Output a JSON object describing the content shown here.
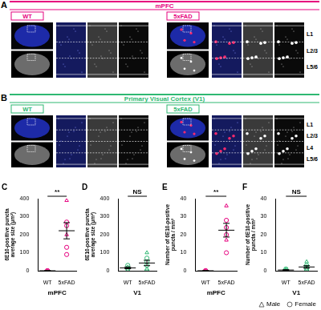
{
  "figure": {
    "panels": [
      {
        "letter": "A",
        "title": "mPFC",
        "color": "#e6007e",
        "groups": [
          "WT",
          "5xFAD"
        ],
        "layers": [
          "L1",
          "L2/3",
          "L5/6"
        ]
      },
      {
        "letter": "B",
        "title": "Primary Visual Cortex (V1)",
        "color": "#2eb872",
        "groups": [
          "WT",
          "5xFAD"
        ],
        "layers": [
          "L1",
          "L2/3",
          "L4",
          "L5/6"
        ]
      }
    ]
  },
  "chart_data": [
    {
      "letter": "C",
      "type": "scatter",
      "x_label": "mPFC",
      "y_label": "6E10-positive puncta average size (µm²)",
      "categories": [
        "WT",
        "5xFAD"
      ],
      "color": "#e6007e",
      "grid": false,
      "ylim": [
        0,
        400
      ],
      "yticks": [
        0,
        100,
        200,
        300,
        400
      ],
      "series": [
        {
          "name": "Male",
          "marker": "triangle",
          "x": [
            "WT",
            "WT",
            "5xFAD",
            "5xFAD"
          ],
          "values": [
            0,
            0,
            390,
            200
          ]
        },
        {
          "name": "Female",
          "marker": "circle",
          "x": [
            "WT",
            "WT",
            "WT",
            "5xFAD",
            "5xFAD",
            "5xFAD",
            "5xFAD"
          ],
          "values": [
            0,
            0,
            0,
            270,
            250,
            130,
            90
          ]
        }
      ],
      "mean": [
        0,
        222
      ],
      "sem": [
        0,
        45
      ],
      "annotation": "**"
    },
    {
      "letter": "D",
      "type": "scatter",
      "x_label": "V1",
      "y_label": "6E10-positive puncta average size (µm²)",
      "categories": [
        "WT",
        "5xFAD"
      ],
      "color": "#2eb872",
      "grid": false,
      "ylim": [
        0,
        400
      ],
      "yticks": [
        0,
        100,
        200,
        300,
        400
      ],
      "series": [
        {
          "name": "Male",
          "marker": "triangle",
          "x": [
            "WT",
            "WT",
            "5xFAD",
            "5xFAD"
          ],
          "values": [
            20,
            5,
            100,
            10
          ]
        },
        {
          "name": "Female",
          "marker": "circle",
          "x": [
            "WT",
            "WT",
            "WT",
            "5xFAD",
            "5xFAD",
            "5xFAD",
            "5xFAD"
          ],
          "values": [
            10,
            30,
            15,
            70,
            50,
            30,
            0
          ]
        }
      ],
      "mean": [
        16,
        43
      ],
      "sem": [
        5,
        15
      ],
      "annotation": "NS"
    },
    {
      "letter": "E",
      "type": "scatter",
      "x_label": "mPFC",
      "y_label": "Number of 6E10-positive puncta / mm²",
      "categories": [
        "WT",
        "5xFAD"
      ],
      "color": "#e6007e",
      "grid": false,
      "ylim": [
        0,
        40
      ],
      "yticks": [
        0,
        10,
        20,
        30,
        40
      ],
      "series": [
        {
          "name": "Male",
          "marker": "triangle",
          "x": [
            "WT",
            "WT",
            "5xFAD",
            "5xFAD"
          ],
          "values": [
            0,
            0,
            36,
            17
          ]
        },
        {
          "name": "Female",
          "marker": "circle",
          "x": [
            "WT",
            "WT",
            "WT",
            "5xFAD",
            "5xFAD",
            "5xFAD",
            "5xFAD"
          ],
          "values": [
            0,
            0,
            0,
            28,
            24,
            20,
            10
          ]
        }
      ],
      "mean": [
        0,
        22.5
      ],
      "sem": [
        0,
        3.8
      ],
      "annotation": "**"
    },
    {
      "letter": "F",
      "type": "scatter",
      "x_label": "V1",
      "y_label": "Number of 6E10-positive puncta / mm²",
      "categories": [
        "WT",
        "5xFAD"
      ],
      "color": "#2eb872",
      "grid": false,
      "ylim": [
        0,
        40
      ],
      "yticks": [
        0,
        10,
        20,
        30,
        40
      ],
      "series": [
        {
          "name": "Male",
          "marker": "triangle",
          "x": [
            "WT",
            "WT",
            "5xFAD",
            "5xFAD"
          ],
          "values": [
            0.5,
            0,
            5,
            1
          ]
        },
        {
          "name": "Female",
          "marker": "circle",
          "x": [
            "WT",
            "WT",
            "WT",
            "5xFAD",
            "5xFAD",
            "5xFAD",
            "5xFAD"
          ],
          "values": [
            1,
            0,
            0.3,
            3,
            2,
            1.5,
            0
          ]
        }
      ],
      "mean": [
        0.4,
        2.1
      ],
      "sem": [
        0.2,
        0.7
      ],
      "annotation": "NS"
    }
  ]
}
